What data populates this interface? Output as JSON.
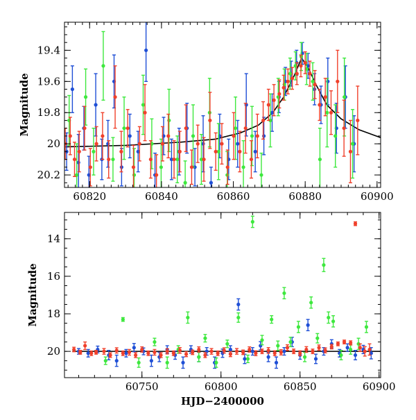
{
  "colors": {
    "blue": "#1f4fd6",
    "green": "#3ee83e",
    "red": "#f0402b",
    "model": "#000000"
  },
  "chart_data": [
    {
      "type": "scatter",
      "xlabel": "",
      "ylabel": "Magnitude",
      "xlim": [
        60813,
        60901
      ],
      "ylim": [
        20.28,
        19.22
      ],
      "y_inverted": true,
      "xticks": [
        60820,
        60840,
        60860,
        60880,
        60900
      ],
      "xtick_labels": [
        "60820",
        "60840",
        "60860",
        "60880",
        "60900"
      ],
      "yticks": [
        19.4,
        19.6,
        19.8,
        20.0,
        20.2
      ],
      "ytick_labels": [
        "19.4",
        "19.6",
        "19.8",
        "20",
        "20.2"
      ],
      "model_curve": {
        "baseline_mag": 20.02,
        "peak_mag": 19.45,
        "peak_hjd": 60879,
        "x": [
          60813,
          60830,
          60845,
          60855,
          60862,
          60867,
          60871,
          60874,
          60877,
          60879,
          60881,
          60883,
          60886,
          60890,
          60895,
          60901
        ],
        "y": [
          20.02,
          20.01,
          19.99,
          19.97,
          19.93,
          19.88,
          19.8,
          19.7,
          19.56,
          19.45,
          19.52,
          19.62,
          19.75,
          19.84,
          19.91,
          19.96
        ]
      },
      "series": [
        {
          "color": "blue",
          "x": [
            60813.6,
            60815.2,
            60816.9,
            60818.4,
            60819.8,
            60821.7,
            60823.4,
            60825.1,
            60826.8,
            60828.9,
            60831.2,
            60833.5,
            60835.7,
            60838.2,
            60840.6,
            60842.8,
            60844.9,
            60847.1,
            60849.3,
            60851.6,
            60853.8,
            60856.2,
            60858.7,
            60861.2,
            60863.6,
            60866.1,
            60868.5,
            60870.8,
            60872.7,
            60874.5,
            60876.1,
            60877.6,
            60879.2,
            60880.8,
            60882.6,
            60884.4,
            60886.3,
            60888.7,
            60891.2,
            60893.6
          ],
          "y": [
            20.05,
            19.65,
            20.12,
            19.9,
            20.2,
            19.75,
            20.1,
            20.0,
            19.6,
            20.15,
            19.95,
            20.05,
            19.4,
            20.2,
            19.95,
            20.1,
            20.05,
            19.9,
            20.15,
            20.0,
            20.25,
            19.95,
            20.1,
            20.0,
            19.75,
            20.05,
            19.95,
            19.8,
            19.7,
            19.6,
            19.55,
            19.48,
            19.42,
            19.5,
            19.65,
            19.75,
            19.6,
            19.9,
            19.7,
            20.0
          ],
          "err": [
            0.12,
            0.15,
            0.18,
            0.14,
            0.12,
            0.2,
            0.13,
            0.15,
            0.17,
            0.12,
            0.14,
            0.13,
            0.2,
            0.14,
            0.12,
            0.13,
            0.15,
            0.16,
            0.12,
            0.18,
            0.1,
            0.14,
            0.13,
            0.15,
            0.2,
            0.13,
            0.12,
            0.12,
            0.1,
            0.09,
            0.08,
            0.08,
            0.07,
            0.08,
            0.1,
            0.12,
            0.15,
            0.16,
            0.2,
            0.18
          ]
        },
        {
          "color": "green",
          "x": [
            60814.3,
            60816.4,
            60818.9,
            60821.1,
            60823.8,
            60826.5,
            60829.6,
            60832.4,
            60834.9,
            60837.3,
            60839.9,
            60842.1,
            60844.4,
            60846.6,
            60848.8,
            60851.1,
            60853.4,
            60855.9,
            60858.3,
            60860.6,
            60862.8,
            60865.2,
            60867.8,
            60870.3,
            60872.5,
            60874.2,
            60875.8,
            60877.3,
            60878.9,
            60880.4,
            60882.1,
            60884.1,
            60886.1,
            60888.4,
            60890.9,
            60893.2
          ],
          "y": [
            19.85,
            20.2,
            19.7,
            20.05,
            19.5,
            20.1,
            19.9,
            20.2,
            19.75,
            20.0,
            20.15,
            19.85,
            20.1,
            20.25,
            19.95,
            20.1,
            19.8,
            20.05,
            20.2,
            19.9,
            20.15,
            19.95,
            20.2,
            19.85,
            19.7,
            19.62,
            19.55,
            19.5,
            19.44,
            19.52,
            19.6,
            20.1,
            19.8,
            19.95,
            19.7,
            20.0
          ],
          "err": [
            0.16,
            0.2,
            0.18,
            0.15,
            0.22,
            0.14,
            0.2,
            0.17,
            0.19,
            0.16,
            0.18,
            0.2,
            0.15,
            0.14,
            0.2,
            0.16,
            0.22,
            0.18,
            0.15,
            0.2,
            0.17,
            0.19,
            0.14,
            0.17,
            0.12,
            0.1,
            0.1,
            0.09,
            0.09,
            0.1,
            0.12,
            0.2,
            0.22,
            0.2,
            0.25,
            0.22
          ]
        },
        {
          "color": "red",
          "x": [
            60813.2,
            60814.6,
            60815.8,
            60817.1,
            60818.6,
            60820.2,
            60821.9,
            60823.6,
            60825.3,
            60827.1,
            60828.8,
            60830.6,
            60832.2,
            60833.9,
            60835.4,
            60837.0,
            60838.6,
            60840.3,
            60841.9,
            60843.5,
            60845.1,
            60846.8,
            60848.4,
            60850.1,
            60851.8,
            60853.5,
            60855.1,
            60856.8,
            60858.4,
            60860.1,
            60861.8,
            60863.4,
            60865.0,
            60866.7,
            60868.3,
            60869.8,
            60871.3,
            60872.8,
            60874.0,
            60875.2,
            60876.4,
            60877.7,
            60878.8,
            60880.0,
            60881.3,
            60882.7,
            60884.0,
            60885.6,
            60887.2,
            60889.0,
            60890.8,
            60892.6,
            60894.6
          ],
          "y": [
            20.0,
            19.95,
            20.1,
            20.05,
            19.9,
            20.15,
            20.0,
            19.95,
            20.1,
            19.7,
            20.05,
            19.9,
            20.15,
            20.0,
            19.8,
            20.1,
            20.2,
            20.0,
            19.95,
            20.1,
            20.05,
            19.9,
            20.15,
            20.0,
            20.1,
            19.85,
            20.05,
            20.0,
            20.15,
            19.95,
            20.05,
            19.9,
            20.1,
            19.95,
            19.85,
            19.75,
            19.72,
            19.68,
            19.64,
            19.6,
            19.58,
            19.55,
            19.5,
            19.48,
            19.55,
            19.62,
            19.75,
            19.7,
            19.8,
            19.6,
            19.9,
            20.05,
            19.85
          ],
          "err": [
            0.1,
            0.12,
            0.11,
            0.13,
            0.14,
            0.12,
            0.11,
            0.15,
            0.12,
            0.2,
            0.13,
            0.12,
            0.14,
            0.11,
            0.18,
            0.12,
            0.13,
            0.11,
            0.14,
            0.12,
            0.13,
            0.15,
            0.11,
            0.12,
            0.14,
            0.18,
            0.12,
            0.13,
            0.11,
            0.15,
            0.13,
            0.16,
            0.12,
            0.14,
            0.12,
            0.1,
            0.1,
            0.09,
            0.08,
            0.08,
            0.07,
            0.07,
            0.07,
            0.07,
            0.08,
            0.09,
            0.1,
            0.12,
            0.14,
            0.2,
            0.18,
            0.2,
            0.22
          ]
        }
      ]
    },
    {
      "type": "scatter",
      "xlabel": "HJD−2400000",
      "ylabel": "Magnitude",
      "xlim": [
        60701,
        60901
      ],
      "ylim": [
        21.4,
        12.6
      ],
      "y_inverted": true,
      "xticks": [
        60750,
        60800,
        60850,
        60900
      ],
      "xtick_labels": [
        "60750",
        "60800",
        "60850",
        "60900"
      ],
      "yticks": [
        14,
        16,
        18,
        20
      ],
      "ytick_labels": [
        "14",
        "16",
        "18",
        "20"
      ],
      "baseline_line": {
        "mag": 20.0,
        "x_start": 60706,
        "x_end": 60901
      },
      "series": [
        {
          "color": "blue",
          "x": [
            60710,
            60716,
            60722,
            60729,
            60734,
            60740,
            60745,
            60751,
            60756,
            60761,
            60766,
            60771,
            60776,
            60781,
            60786,
            60791,
            60796,
            60801,
            60806,
            60811,
            60815,
            60820,
            60825,
            60830,
            60835,
            60840,
            60845,
            60850,
            60855,
            60860,
            60865,
            60870,
            60875,
            60880,
            60885,
            60890,
            60895
          ],
          "y": [
            20.0,
            20.1,
            19.9,
            20.2,
            20.5,
            20.1,
            19.8,
            20.0,
            20.5,
            20.3,
            19.9,
            20.2,
            20.6,
            19.9,
            20.3,
            20.0,
            20.6,
            20.1,
            19.9,
            17.5,
            20.4,
            20.0,
            19.7,
            20.3,
            20.6,
            20.0,
            19.5,
            20.2,
            18.6,
            20.4,
            20.0,
            19.6,
            20.1,
            19.8,
            20.2,
            19.9,
            20.1
          ],
          "err": [
            0.15,
            0.2,
            0.18,
            0.25,
            0.3,
            0.2,
            0.22,
            0.18,
            0.3,
            0.25,
            0.2,
            0.22,
            0.3,
            0.2,
            0.25,
            0.2,
            0.3,
            0.22,
            0.2,
            0.3,
            0.25,
            0.2,
            0.22,
            0.25,
            0.3,
            0.2,
            0.25,
            0.22,
            0.3,
            0.25,
            0.2,
            0.22,
            0.2,
            0.2,
            0.25,
            0.22,
            0.3
          ]
        },
        {
          "color": "green",
          "x": [
            60727,
            60738,
            60748,
            60758,
            60766,
            60773,
            60779,
            60786,
            60790,
            60797,
            60804,
            60811,
            60817,
            60820,
            60826,
            60832,
            60836,
            60840,
            60844,
            60849,
            60853,
            60857,
            60861,
            60865,
            60868,
            60871,
            60876,
            60882,
            60887,
            60892
          ],
          "y": [
            20.5,
            18.3,
            20.6,
            19.5,
            20.6,
            19.9,
            18.2,
            20.3,
            19.3,
            20.6,
            19.6,
            18.2,
            20.4,
            13.1,
            19.4,
            18.3,
            19.7,
            16.9,
            19.5,
            18.7,
            20.3,
            17.4,
            19.3,
            15.4,
            18.2,
            18.4,
            20.2,
            19.9,
            19.6,
            18.7
          ],
          "err": [
            0.2,
            0.1,
            0.25,
            0.2,
            0.3,
            0.2,
            0.3,
            0.25,
            0.2,
            0.25,
            0.2,
            0.25,
            0.2,
            0.3,
            0.25,
            0.2,
            0.25,
            0.3,
            0.25,
            0.3,
            0.25,
            0.3,
            0.25,
            0.35,
            0.3,
            0.3,
            0.25,
            0.25,
            0.3,
            0.3
          ]
        },
        {
          "color": "red",
          "x": [
            60707,
            60711,
            60714,
            60718,
            60721,
            60726,
            60730,
            60734,
            60738,
            60742,
            60746,
            60750,
            60754,
            60758,
            60762,
            60766,
            60770,
            60774,
            60778,
            60782,
            60786,
            60790,
            60794,
            60798,
            60802,
            60806,
            60810,
            60814,
            60818,
            60822,
            60826,
            60830,
            60834,
            60838,
            60842,
            60846,
            60850,
            60854,
            60858,
            60862,
            60866,
            60870,
            60874,
            60878,
            60882,
            60885,
            60888,
            60891,
            60894
          ],
          "y": [
            19.9,
            20.05,
            19.7,
            20.1,
            20.05,
            20.0,
            20.2,
            19.95,
            20.1,
            20.05,
            20.2,
            19.9,
            20.1,
            20.05,
            20.2,
            20.0,
            20.1,
            19.95,
            20.15,
            20.05,
            19.9,
            20.2,
            20.0,
            20.1,
            19.95,
            20.15,
            20.0,
            20.05,
            19.9,
            20.1,
            20.0,
            19.95,
            20.1,
            20.05,
            19.8,
            20.0,
            20.1,
            19.9,
            20.0,
            19.8,
            19.95,
            19.75,
            19.6,
            19.5,
            19.55,
            13.2,
            19.8,
            20.0,
            19.9
          ],
          "err": [
            0.12,
            0.1,
            0.2,
            0.12,
            0.1,
            0.15,
            0.12,
            0.14,
            0.12,
            0.15,
            0.13,
            0.14,
            0.12,
            0.15,
            0.13,
            0.14,
            0.12,
            0.15,
            0.13,
            0.12,
            0.14,
            0.13,
            0.15,
            0.12,
            0.14,
            0.13,
            0.15,
            0.12,
            0.14,
            0.13,
            0.12,
            0.15,
            0.13,
            0.14,
            0.15,
            0.12,
            0.13,
            0.15,
            0.12,
            0.14,
            0.13,
            0.12,
            0.1,
            0.1,
            0.11,
            0.1,
            0.2,
            0.25,
            0.3
          ]
        }
      ]
    }
  ]
}
